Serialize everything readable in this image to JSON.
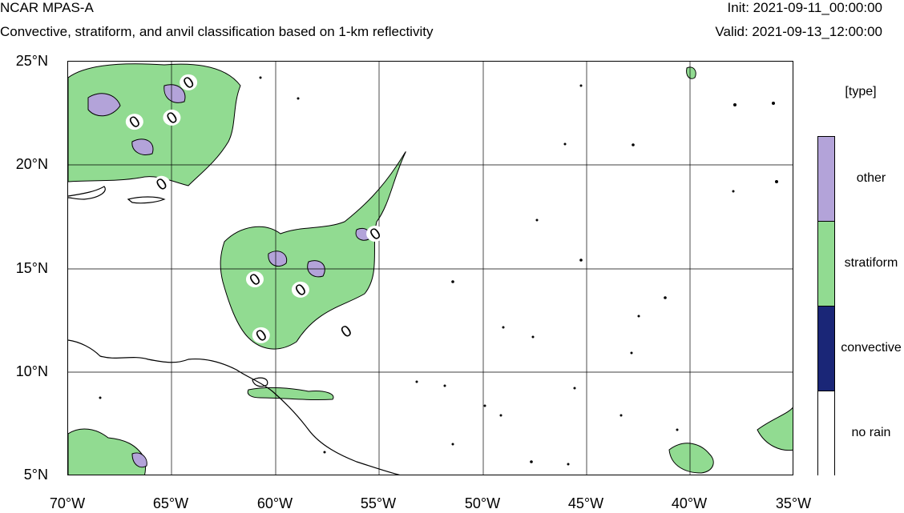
{
  "header": {
    "title": "NCAR MPAS-A",
    "subtitle": "Convective, stratiform, and anvil classification based on 1-km reflectivity",
    "init": "Init: 2021-09-11_00:00:00",
    "valid": "Valid: 2021-09-13_12:00:00"
  },
  "axes": {
    "lat_labels": [
      "25°N",
      "20°N",
      "15°N",
      "10°N",
      "5°N"
    ],
    "lon_labels": [
      "70°W",
      "65°W",
      "60°W",
      "55°W",
      "50°W",
      "45°W",
      "40°W",
      "35°W"
    ],
    "lat_range": [
      5,
      25
    ],
    "lon_range": [
      -70,
      -35
    ],
    "grid": true
  },
  "legend": {
    "title": "[type]",
    "entries": [
      {
        "label": "other",
        "color": "#b3a3d9"
      },
      {
        "label": "stratiform",
        "color": "#91db91"
      },
      {
        "label": "convective",
        "color": "#1a2677"
      },
      {
        "label": "no rain",
        "color": "#ffffff"
      }
    ]
  },
  "map": {
    "contour_labels": [
      {
        "text": "0",
        "lon": -64.2,
        "lat": 24.0
      },
      {
        "text": "0",
        "lon": -66.8,
        "lat": 22.1
      },
      {
        "text": "0",
        "lon": -65.0,
        "lat": 22.3
      },
      {
        "text": "0",
        "lon": -65.5,
        "lat": 19.1
      },
      {
        "text": "0",
        "lon": -55.2,
        "lat": 16.7
      },
      {
        "text": "0",
        "lon": -61.0,
        "lat": 14.5
      },
      {
        "text": "0",
        "lon": -58.8,
        "lat": 14.0
      },
      {
        "text": "0",
        "lon": -60.7,
        "lat": 11.8
      },
      {
        "text": "0",
        "lon": -56.6,
        "lat": 12.0
      }
    ]
  }
}
